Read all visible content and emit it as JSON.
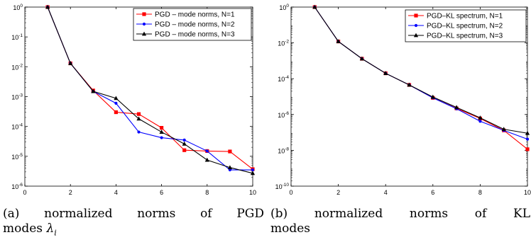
{
  "chart_data": [
    {
      "type": "line",
      "caption": {
        "label": "(a)",
        "words": [
          "normalized",
          "norms",
          "of",
          "PGD"
        ],
        "line2": "modes",
        "math_symbol": "λ",
        "math_sub": "i"
      },
      "xlim": [
        0,
        10
      ],
      "ylim_log10": [
        -6,
        0
      ],
      "yscale": "log",
      "x_ticks": [
        0,
        2,
        4,
        6,
        8,
        10
      ],
      "y_tick_exponents": [
        -6,
        -5,
        -4,
        -3,
        -2,
        -1,
        0
      ],
      "y_tick_base": "10",
      "grid": false,
      "legend_position": "top-right",
      "series": [
        {
          "name": "PGD – mode norms, N=1",
          "color": "#ff0000",
          "marker": "square",
          "x": [
            1,
            2,
            3,
            4,
            5,
            6,
            7,
            8,
            9,
            10
          ],
          "y": [
            1.0,
            0.013,
            0.0016,
            0.0003,
            0.00026,
            9e-05,
            1.6e-05,
            1.5e-05,
            1.45e-05,
            3.7e-06
          ]
        },
        {
          "name": "PGD – mode norms, N=2",
          "color": "#0000ff",
          "marker": "dot",
          "x": [
            1,
            2,
            3,
            4,
            5,
            6,
            7,
            8,
            9,
            10
          ],
          "y": [
            1.0,
            0.013,
            0.0015,
            0.0006,
            6.5e-05,
            4.2e-05,
            3.5e-05,
            1.5e-05,
            3.5e-06,
            3.5e-06
          ]
        },
        {
          "name": "PGD – mode norms, N=3",
          "color": "#000000",
          "marker": "triangle",
          "x": [
            1,
            2,
            3,
            4,
            5,
            6,
            7,
            8,
            9,
            10
          ],
          "y": [
            1.0,
            0.013,
            0.0015,
            0.00088,
            0.00018,
            6.5e-05,
            2.6e-05,
            7.5e-06,
            4.2e-06,
            2.7e-06
          ]
        }
      ]
    },
    {
      "type": "line",
      "caption": {
        "label": "(b)",
        "words": [
          "normalized",
          "norms",
          "of",
          "KL"
        ],
        "line2": "modes"
      },
      "xlim": [
        0,
        10
      ],
      "ylim_log10": [
        -10,
        0
      ],
      "yscale": "log",
      "x_ticks": [
        0,
        2,
        4,
        6,
        8,
        10
      ],
      "y_tick_exponents": [
        -10,
        -8,
        -6,
        -4,
        -2,
        0
      ],
      "y_tick_base": "10",
      "grid": false,
      "legend_position": "top-right",
      "series": [
        {
          "name": "PGD–KL spectrum, N=1",
          "color": "#ff0000",
          "marker": "square",
          "x": [
            1,
            2,
            3,
            4,
            5,
            6,
            7,
            8,
            9,
            10
          ],
          "y": [
            1.0,
            0.012,
            0.0013,
            0.0002,
            4.5e-05,
            8.5e-06,
            2.2e-06,
            6e-07,
            1.3e-07,
            1.15e-08
          ]
        },
        {
          "name": "PGD–KL spectrum, N=2",
          "color": "#0000ff",
          "marker": "dot",
          "x": [
            1,
            2,
            3,
            4,
            5,
            6,
            7,
            8,
            9,
            10
          ],
          "y": [
            1.0,
            0.012,
            0.0013,
            0.0002,
            4.5e-05,
            8.5e-06,
            2.1e-06,
            4.2e-07,
            1.3e-07,
            4.2e-08
          ]
        },
        {
          "name": "PGD–KL spectrum, N=3",
          "color": "#000000",
          "marker": "triangle",
          "x": [
            1,
            2,
            3,
            4,
            5,
            6,
            7,
            8,
            9,
            10
          ],
          "y": [
            1.0,
            0.012,
            0.0013,
            0.0002,
            4.5e-05,
            9.5e-06,
            2.5e-06,
            6.5e-07,
            1.5e-07,
            9e-08
          ]
        }
      ]
    }
  ]
}
